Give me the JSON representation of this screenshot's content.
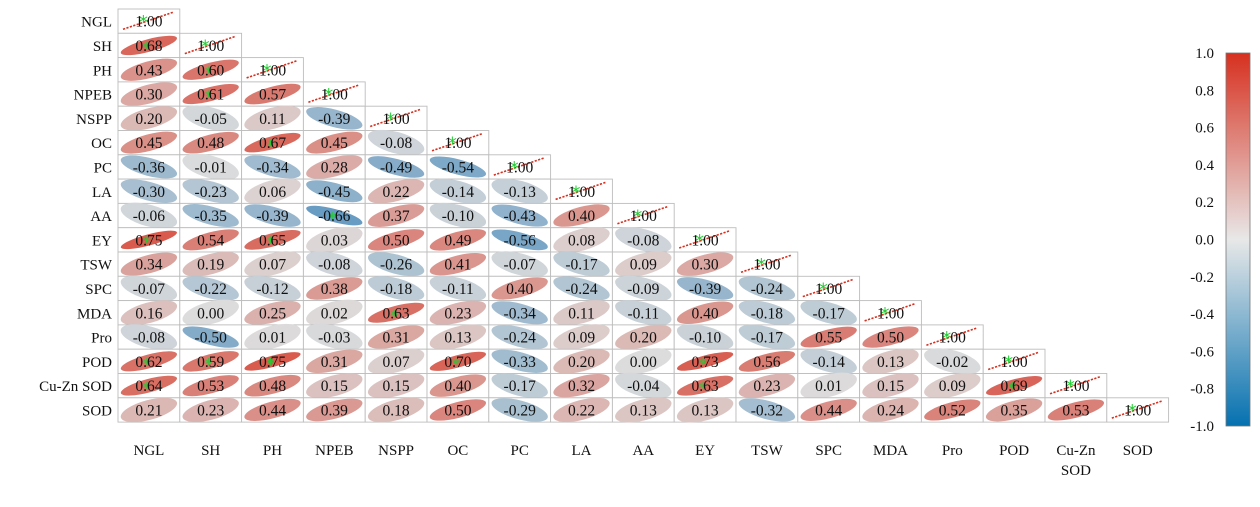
{
  "chart_data": {
    "type": "heatmap",
    "variables": [
      "NGL",
      "SH",
      "PH",
      "NPEB",
      "NSPP",
      "OC",
      "PC",
      "LA",
      "AA",
      "EY",
      "TSW",
      "SPC",
      "MDA",
      "Pro",
      "POD",
      "Cu-Zn SOD",
      "SOD"
    ],
    "matrix": [
      [
        1.0
      ],
      [
        0.68,
        1.0
      ],
      [
        0.43,
        0.6,
        1.0
      ],
      [
        0.3,
        0.61,
        0.57,
        1.0
      ],
      [
        0.2,
        -0.05,
        0.11,
        -0.39,
        1.0
      ],
      [
        0.45,
        0.48,
        0.67,
        0.45,
        -0.08,
        1.0
      ],
      [
        -0.36,
        -0.01,
        -0.34,
        0.28,
        -0.49,
        -0.54,
        1.0
      ],
      [
        -0.3,
        -0.23,
        0.06,
        -0.45,
        0.22,
        -0.14,
        -0.13,
        1.0
      ],
      [
        -0.06,
        -0.35,
        -0.39,
        -0.66,
        0.37,
        -0.1,
        -0.43,
        0.4,
        1.0
      ],
      [
        0.75,
        0.54,
        0.65,
        0.03,
        0.5,
        0.49,
        -0.56,
        0.08,
        -0.08,
        1.0
      ],
      [
        0.34,
        0.19,
        0.07,
        -0.08,
        -0.26,
        0.41,
        -0.07,
        -0.17,
        0.09,
        0.3,
        1.0
      ],
      [
        -0.07,
        -0.22,
        -0.12,
        0.38,
        -0.18,
        -0.11,
        0.4,
        -0.24,
        -0.09,
        -0.39,
        -0.24,
        1.0
      ],
      [
        0.16,
        0.0,
        0.25,
        0.02,
        0.63,
        0.23,
        -0.34,
        0.11,
        -0.11,
        0.4,
        -0.18,
        -0.17,
        1.0
      ],
      [
        -0.08,
        -0.5,
        0.01,
        -0.03,
        0.31,
        0.13,
        -0.24,
        0.09,
        0.2,
        -0.1,
        -0.17,
        0.55,
        0.5,
        1.0
      ],
      [
        0.62,
        0.59,
        0.75,
        0.31,
        0.07,
        0.7,
        -0.33,
        0.2,
        0.0,
        0.73,
        0.56,
        -0.14,
        0.13,
        -0.02,
        1.0
      ],
      [
        0.64,
        0.53,
        0.48,
        0.15,
        0.15,
        0.4,
        -0.17,
        0.32,
        -0.04,
        0.63,
        0.23,
        0.01,
        0.15,
        0.09,
        0.69,
        1.0
      ],
      [
        0.21,
        0.23,
        0.44,
        0.39,
        0.18,
        0.5,
        -0.29,
        0.22,
        0.13,
        0.13,
        -0.32,
        0.44,
        0.24,
        0.52,
        0.35,
        0.53,
        1.0
      ]
    ],
    "value_range": [
      -1.0,
      1.0
    ],
    "colorbar_ticks": [
      "1.0",
      "0.8",
      "0.6",
      "0.4",
      "0.2",
      "0.0",
      "-0.2",
      "-0.4",
      "-0.6",
      "-0.8",
      "-1.0"
    ],
    "colorbar_tick_values": [
      1.0,
      0.8,
      0.6,
      0.4,
      0.2,
      0.0,
      -0.2,
      -0.4,
      -0.6,
      -0.8,
      -1.0
    ],
    "colors": {
      "negative": "#2c7bb6",
      "zero": "#dcdcdc",
      "positive": "#d7301f",
      "diagonal_line": "#d7301f",
      "diagonal_star": "#22cc33",
      "grid": "#bdbdbd"
    },
    "layout": "lower-triangle",
    "legend_position": "right",
    "grid": false
  }
}
